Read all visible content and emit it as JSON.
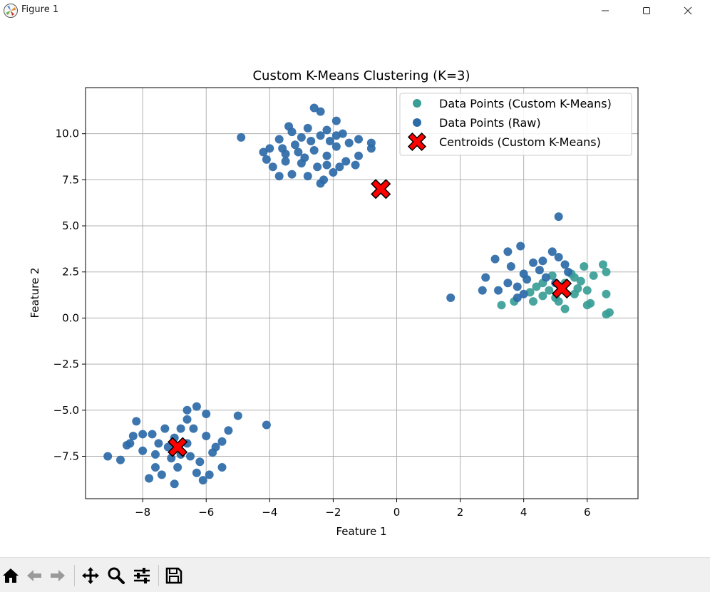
{
  "window": {
    "title": "Figure 1",
    "minimize_label": "minimize",
    "maximize_label": "maximize",
    "close_label": "close"
  },
  "toolbar": {
    "buttons": [
      {
        "name": "home-icon"
      },
      {
        "name": "back-icon"
      },
      {
        "name": "forward-icon"
      },
      {
        "name": "pan-icon"
      },
      {
        "name": "zoom-icon"
      },
      {
        "name": "configure-subplots-icon"
      },
      {
        "name": "save-icon"
      }
    ]
  },
  "chart_data": {
    "type": "scatter",
    "title": "Custom K-Means Clustering (K=3)",
    "xlabel": "Feature 1",
    "ylabel": "Feature 2",
    "xlim": [
      -9.8,
      7.6
    ],
    "ylim": [
      -9.8,
      12.5
    ],
    "xticks": [
      -8,
      -6,
      -4,
      -2,
      0,
      2,
      4,
      6
    ],
    "yticks": [
      -7.5,
      -5.0,
      -2.5,
      0.0,
      2.5,
      5.0,
      7.5,
      10.0
    ],
    "xtick_labels": [
      "−8",
      "−6",
      "−4",
      "−2",
      "0",
      "2",
      "4",
      "6"
    ],
    "ytick_labels": [
      "−7.5",
      "−5.0",
      "−2.5",
      "0.0",
      "2.5",
      "5.0",
      "7.5",
      "10.0"
    ],
    "grid": true,
    "legend_position": "top-right",
    "series": [
      {
        "name": "Data Points (Custom K-Means)",
        "color": "#3a9e97",
        "points": [
          [
            3.3,
            0.7
          ],
          [
            3.7,
            0.9
          ],
          [
            4.3,
            0.9
          ],
          [
            4.6,
            1.2
          ],
          [
            5.0,
            1.1
          ],
          [
            5.3,
            0.5
          ],
          [
            5.6,
            1.3
          ],
          [
            6.0,
            0.7
          ],
          [
            6.1,
            0.8
          ],
          [
            6.2,
            2.3
          ],
          [
            6.5,
            2.9
          ],
          [
            6.6,
            2.5
          ],
          [
            6.6,
            1.3
          ],
          [
            6.7,
            0.3
          ],
          [
            6.6,
            0.2
          ],
          [
            5.9,
            2.8
          ],
          [
            5.8,
            2.0
          ],
          [
            5.5,
            2.4
          ],
          [
            5.3,
            1.9
          ],
          [
            4.9,
            2.3
          ],
          [
            4.6,
            1.9
          ],
          [
            4.4,
            1.7
          ],
          [
            4.2,
            1.4
          ],
          [
            5.7,
            1.6
          ],
          [
            5.1,
            0.9
          ],
          [
            4.8,
            1.5
          ],
          [
            6.0,
            1.5
          ],
          [
            5.6,
            2.2
          ]
        ]
      },
      {
        "name": "Data Points (Raw)",
        "color": "#2c6aa8",
        "points": [
          [
            -3.0,
            9.8
          ],
          [
            -2.8,
            10.3
          ],
          [
            -2.6,
            11.4
          ],
          [
            -2.4,
            11.2
          ],
          [
            -2.2,
            10.2
          ],
          [
            -1.9,
            10.7
          ],
          [
            -1.7,
            10.0
          ],
          [
            -3.4,
            10.4
          ],
          [
            -3.7,
            9.7
          ],
          [
            -4.0,
            9.2
          ],
          [
            -4.2,
            9.0
          ],
          [
            -3.5,
            8.9
          ],
          [
            -3.2,
            9.4
          ],
          [
            -2.9,
            8.7
          ],
          [
            -2.5,
            8.2
          ],
          [
            -2.2,
            8.8
          ],
          [
            -1.9,
            9.3
          ],
          [
            -1.5,
            9.5
          ],
          [
            -1.2,
            9.7
          ],
          [
            -0.8,
            9.5
          ],
          [
            -0.8,
            9.2
          ],
          [
            -1.2,
            8.8
          ],
          [
            -1.3,
            8.3
          ],
          [
            -1.8,
            8.2
          ],
          [
            -2.0,
            7.9
          ],
          [
            -2.3,
            7.5
          ],
          [
            -2.4,
            7.3
          ],
          [
            -3.3,
            7.8
          ],
          [
            -3.7,
            7.7
          ],
          [
            -3.9,
            8.2
          ],
          [
            -4.9,
            9.8
          ],
          [
            -3.6,
            9.2
          ],
          [
            -3.1,
            9.0
          ],
          [
            -2.7,
            9.6
          ],
          [
            -2.1,
            9.6
          ],
          [
            -2.6,
            9.1
          ],
          [
            -3.0,
            8.4
          ],
          [
            -1.6,
            8.5
          ],
          [
            -2.8,
            7.7
          ],
          [
            -3.5,
            8.5
          ],
          [
            -2.4,
            9.9
          ],
          [
            -1.9,
            9.9
          ],
          [
            -3.3,
            10.1
          ],
          [
            -4.1,
            8.6
          ],
          [
            -2.2,
            8.3
          ],
          [
            1.7,
            1.1
          ],
          [
            2.7,
            1.5
          ],
          [
            2.8,
            2.2
          ],
          [
            3.1,
            3.2
          ],
          [
            3.5,
            3.6
          ],
          [
            3.9,
            3.9
          ],
          [
            3.6,
            2.8
          ],
          [
            4.0,
            2.4
          ],
          [
            4.3,
            3.0
          ],
          [
            4.6,
            3.1
          ],
          [
            4.9,
            3.6
          ],
          [
            5.1,
            3.3
          ],
          [
            5.3,
            2.9
          ],
          [
            5.1,
            5.5
          ],
          [
            4.5,
            2.6
          ],
          [
            4.1,
            2.1
          ],
          [
            3.8,
            1.7
          ],
          [
            3.2,
            1.5
          ],
          [
            3.5,
            1.9
          ],
          [
            4.7,
            2.2
          ],
          [
            5.4,
            2.5
          ],
          [
            5.0,
            1.9
          ],
          [
            4.0,
            1.3
          ],
          [
            3.8,
            1.1
          ],
          [
            -9.1,
            -7.5
          ],
          [
            -8.7,
            -7.7
          ],
          [
            -8.5,
            -6.9
          ],
          [
            -8.3,
            -6.4
          ],
          [
            -8.2,
            -5.6
          ],
          [
            -8.0,
            -6.3
          ],
          [
            -7.8,
            -8.7
          ],
          [
            -7.6,
            -8.1
          ],
          [
            -7.4,
            -8.5
          ],
          [
            -7.2,
            -7.0
          ],
          [
            -7.0,
            -6.5
          ],
          [
            -6.8,
            -6.0
          ],
          [
            -6.6,
            -5.5
          ],
          [
            -6.5,
            -7.5
          ],
          [
            -6.3,
            -8.4
          ],
          [
            -6.1,
            -8.8
          ],
          [
            -5.9,
            -8.5
          ],
          [
            -5.7,
            -7.0
          ],
          [
            -5.5,
            -6.7
          ],
          [
            -5.3,
            -6.1
          ],
          [
            -5.0,
            -5.3
          ],
          [
            -4.1,
            -5.8
          ],
          [
            -6.3,
            -4.8
          ],
          [
            -6.0,
            -5.2
          ],
          [
            -6.6,
            -5.0
          ],
          [
            -7.0,
            -9.0
          ],
          [
            -7.7,
            -6.3
          ],
          [
            -7.5,
            -6.8
          ],
          [
            -6.8,
            -7.4
          ],
          [
            -6.2,
            -7.8
          ],
          [
            -6.0,
            -6.4
          ],
          [
            -5.5,
            -8.1
          ],
          [
            -7.3,
            -6.0
          ],
          [
            -8.0,
            -7.2
          ],
          [
            -7.1,
            -7.6
          ],
          [
            -6.4,
            -6.0
          ],
          [
            -5.8,
            -7.3
          ],
          [
            -6.9,
            -8.1
          ],
          [
            -7.6,
            -7.4
          ],
          [
            -8.4,
            -6.8
          ],
          [
            -6.6,
            -6.8
          ]
        ]
      },
      {
        "name": "Centroids (Custom K-Means)",
        "color": "#ff0000",
        "marker": "X",
        "points": [
          [
            -0.5,
            7.0
          ],
          [
            5.2,
            1.6
          ],
          [
            -6.9,
            -7.0
          ]
        ]
      }
    ]
  }
}
